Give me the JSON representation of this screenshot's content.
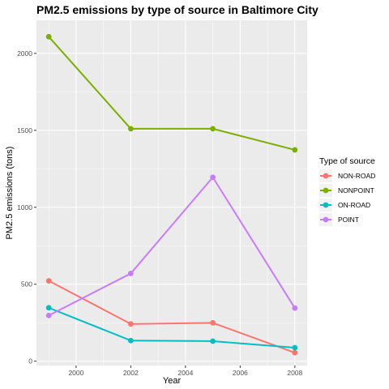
{
  "chart_data": {
    "type": "line",
    "title": "PM2.5 emissions by type of source in Baltimore City",
    "xlabel": "Year",
    "ylabel": "PM2.5 emissions (tons)",
    "x": [
      1999,
      2002,
      2005,
      2008
    ],
    "xlim": [
      1998.55,
      2008.45
    ],
    "ylim": [
      -28,
      2215
    ],
    "xticks": [
      2000,
      2002,
      2004,
      2006,
      2008
    ],
    "yticks": [
      0,
      500,
      1000,
      1500,
      2000
    ],
    "grid": true,
    "legend_title": "Type of source",
    "legend_position": "right",
    "series": [
      {
        "name": "NON-ROAD",
        "color": "#F8766D",
        "values": [
          522,
          242,
          249,
          55
        ]
      },
      {
        "name": "NONPOINT",
        "color": "#7CAE00",
        "values": [
          2108,
          1510,
          1510,
          1373
        ]
      },
      {
        "name": "ON-ROAD",
        "color": "#00BFC4",
        "values": [
          347,
          134,
          130,
          88
        ]
      },
      {
        "name": "POINT",
        "color": "#C77CFF",
        "values": [
          297,
          570,
          1195,
          345
        ]
      }
    ]
  }
}
